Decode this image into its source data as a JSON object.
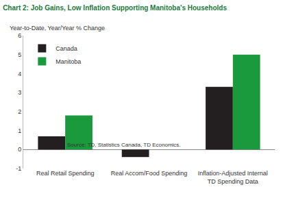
{
  "chart_data": {
    "type": "bar",
    "title": "Chart 2: Job Gains, Low Inflation Supporting Manitoba's Households",
    "subtitle": "Year-to-Date, Year/Year % Change",
    "source": "Source: TD, Statistics Canada, TD Economics.",
    "categories": [
      "Real Retail Spending",
      "Real Accom/Food Spending",
      "Inflation-Adjusted Internal TD Spending Data"
    ],
    "series": [
      {
        "name": "Canada",
        "color": "#231f20",
        "values": [
          0.7,
          -0.4,
          3.3
        ]
      },
      {
        "name": "Manitoba",
        "color": "#1a9a3c",
        "values": [
          1.8,
          0.0,
          5.0
        ]
      }
    ],
    "ylim": [
      -1,
      6
    ],
    "yticks": [
      -1,
      0,
      1,
      2,
      3,
      4,
      5,
      6
    ],
    "grid": false,
    "legend": "top-left"
  }
}
